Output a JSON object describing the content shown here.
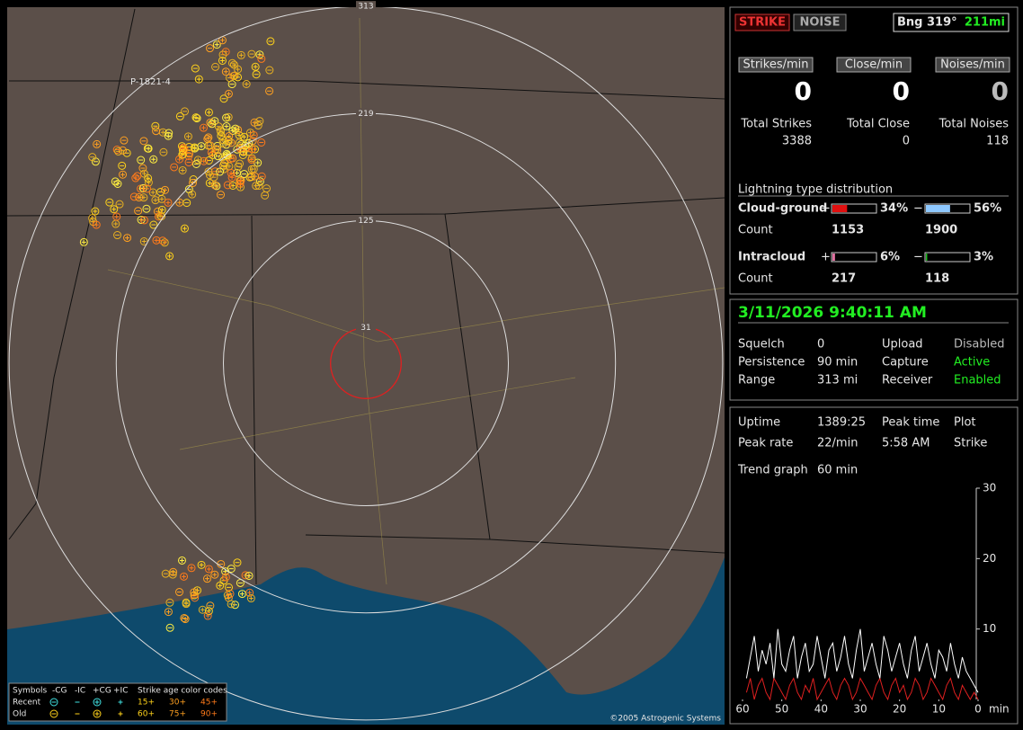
{
  "header": {
    "strike_button": "STRIKE",
    "noise_button": "NOISE",
    "bearing": "Bng 319°",
    "distance": "211mi"
  },
  "counters": {
    "labels": [
      "Strikes/min",
      "Close/min",
      "Noises/min"
    ],
    "values": [
      "0",
      "0",
      "0"
    ],
    "total_labels": [
      "Total Strikes",
      "Total Close",
      "Total Noises"
    ],
    "totals": [
      "3388",
      "0",
      "118"
    ]
  },
  "distribution": {
    "title": "Lightning type distribution",
    "count_label": "Count",
    "plus": "+",
    "minus": "−",
    "rows": [
      {
        "label": "Cloud-ground",
        "plus_pct": 34,
        "plus_pct_label": "34%",
        "minus_pct": 56,
        "minus_pct_label": "56%",
        "plus_count": "1153",
        "minus_count": "1900"
      },
      {
        "label": "Intracloud",
        "plus_pct": 6,
        "plus_pct_label": "6%",
        "minus_pct": 3,
        "minus_pct_label": "3%",
        "plus_count": "217",
        "minus_count": "118"
      }
    ]
  },
  "status": {
    "datetime": "3/11/2026 9:40:11 AM",
    "rows": [
      [
        "Squelch",
        "0",
        "Upload",
        "Disabled"
      ],
      [
        "Persistence",
        "90 min",
        "Capture",
        "Active"
      ],
      [
        "Range",
        "313 mi",
        "Receiver",
        "Enabled"
      ]
    ]
  },
  "stats": {
    "rows": [
      [
        "Uptime",
        "1389:25",
        "Peak time",
        "Plot"
      ],
      [
        "Peak rate",
        "22/min",
        "5:58 AM",
        "Strike"
      ]
    ],
    "trend_label": "Trend graph",
    "trend_value": "60 min"
  },
  "map": {
    "rings": [
      313,
      219,
      125,
      31
    ],
    "marker": "P-1821-4",
    "copyright": "©2005 Astrogenic Systems",
    "legend": {
      "header": [
        "Symbols",
        "-CG",
        "-IC",
        "+CG",
        "+IC",
        "Strike age color codes"
      ],
      "recent": "Recent",
      "old": "Old",
      "recent_ages": [
        "15+",
        "30+",
        "45+"
      ],
      "old_ages": [
        "60+",
        "75+",
        "90+"
      ]
    }
  },
  "chart_data": {
    "type": "line",
    "x_unit": "min",
    "xlim": [
      60,
      0
    ],
    "xticks": [
      60,
      50,
      40,
      30,
      20,
      10,
      0
    ],
    "ylim": [
      0,
      30
    ],
    "yticks": [
      10,
      20,
      30
    ],
    "x": [
      59,
      58,
      57,
      56,
      55,
      54,
      53,
      52,
      51,
      50,
      49,
      48,
      47,
      46,
      45,
      44,
      43,
      42,
      41,
      40,
      39,
      38,
      37,
      36,
      35,
      34,
      33,
      32,
      31,
      30,
      29,
      28,
      27,
      26,
      25,
      24,
      23,
      22,
      21,
      20,
      19,
      18,
      17,
      16,
      15,
      14,
      13,
      12,
      11,
      10,
      9,
      8,
      7,
      6,
      5,
      4,
      3,
      2,
      1,
      0
    ],
    "series": [
      {
        "name": "Strike",
        "color": "#ffffff",
        "values": [
          3,
          6,
          9,
          4,
          7,
          5,
          8,
          3,
          10,
          5,
          4,
          7,
          9,
          3,
          6,
          8,
          4,
          5,
          9,
          6,
          3,
          7,
          8,
          4,
          6,
          9,
          5,
          3,
          7,
          10,
          4,
          6,
          8,
          5,
          3,
          9,
          7,
          4,
          6,
          8,
          5,
          3,
          7,
          9,
          4,
          6,
          8,
          5,
          3,
          7,
          6,
          4,
          8,
          5,
          3,
          6,
          4,
          3,
          2,
          1
        ]
      },
      {
        "name": "Noise",
        "color": "#e02020",
        "values": [
          1,
          3,
          0,
          2,
          3,
          1,
          0,
          3,
          2,
          1,
          0,
          2,
          3,
          1,
          0,
          2,
          1,
          3,
          0,
          1,
          2,
          3,
          1,
          0,
          2,
          3,
          2,
          0,
          1,
          3,
          2,
          1,
          0,
          2,
          3,
          1,
          0,
          2,
          3,
          1,
          2,
          0,
          1,
          3,
          2,
          0,
          1,
          3,
          2,
          1,
          0,
          2,
          3,
          1,
          0,
          2,
          1,
          0,
          1,
          0
        ]
      }
    ]
  }
}
